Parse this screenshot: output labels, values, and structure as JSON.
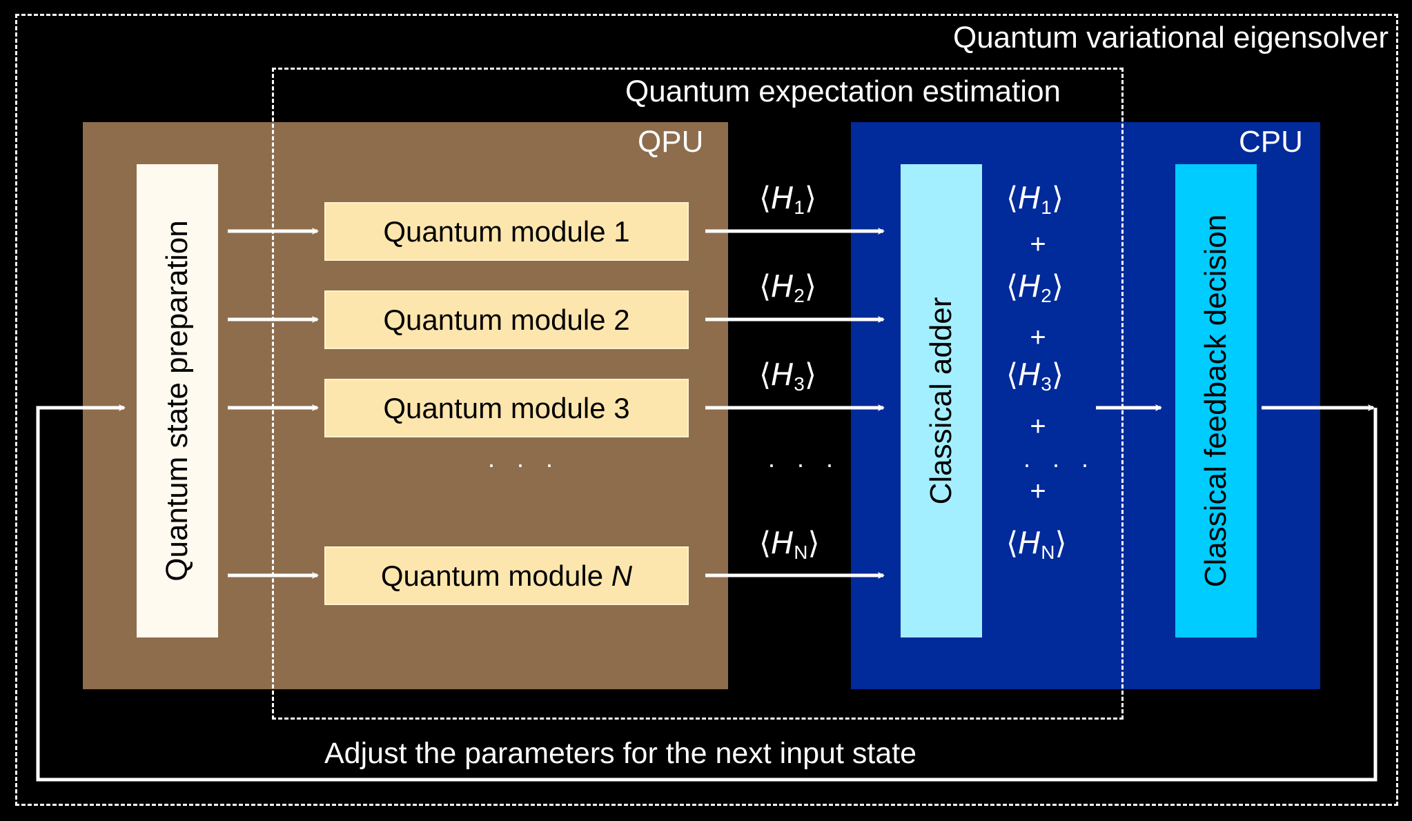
{
  "outer": {
    "title": "Quantum variational eigensolver"
  },
  "inner": {
    "title": "Quantum expectation estimation"
  },
  "qpu": {
    "label": "QPU",
    "color": "#8e6d4d",
    "state_prep": "Quantum state preparation",
    "modules": [
      {
        "text": "Quantum module 1",
        "index": ""
      },
      {
        "text": "Quantum module 2",
        "index": ""
      },
      {
        "text": "Quantum module 3",
        "index": ""
      },
      {
        "text": "Quantum module ",
        "index": "N"
      }
    ],
    "ellipsis": "· · ·"
  },
  "cpu": {
    "label": "CPU",
    "color": "#012a9a",
    "adder": "Classical adder",
    "feedback": "Classical feedback decision",
    "sum_plus": "+",
    "sum_ellipsis": "· · ·"
  },
  "expectations": [
    {
      "open": "⟨",
      "var": "H",
      "sub": "1",
      "close": "⟩"
    },
    {
      "open": "⟨",
      "var": "H",
      "sub": "2",
      "close": "⟩"
    },
    {
      "open": "⟨",
      "var": "H",
      "sub": "3",
      "close": "⟩"
    },
    {
      "open": "⟨",
      "var": "H",
      "sub": "N",
      "close": "⟩"
    }
  ],
  "mid_ellipsis": "· · ·",
  "feedback_loop": {
    "label": "Adjust the parameters for the next input state"
  },
  "colors": {
    "background": "#000000",
    "module_fill": "#fde6ad",
    "state_prep_fill": "#fffaf0",
    "adder_fill": "#a4efff",
    "feedback_fill": "#00ccff",
    "line": "#ffffff"
  }
}
